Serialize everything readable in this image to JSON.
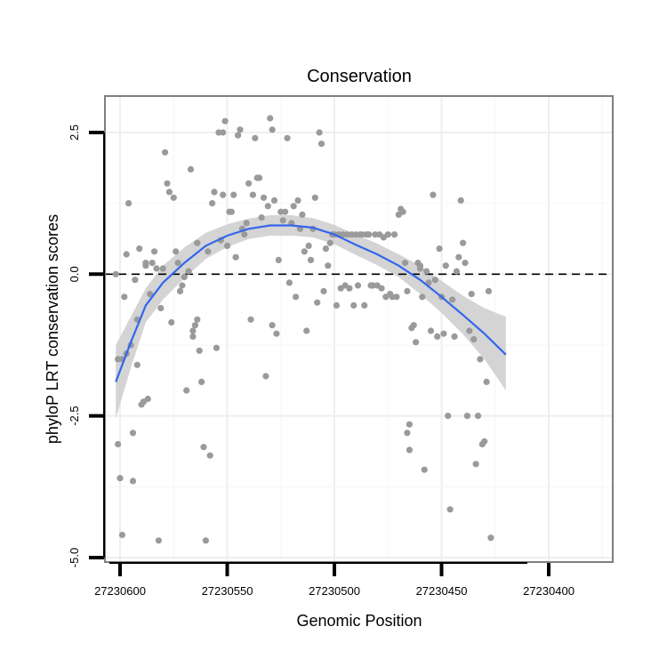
{
  "chart_data": {
    "type": "scatter",
    "title": "Conservation",
    "xlabel": "Genomic Position",
    "ylabel": "phyloP LRT conservation scores",
    "x_reversed": true,
    "xlim": [
      27230410,
      27230605
    ],
    "ylim": [
      -5.0,
      3.0
    ],
    "x_ticks": [
      27230600,
      27230550,
      27230500,
      27230450,
      27230400
    ],
    "x_tick_labels": [
      "27230600",
      "27230550",
      "27230500",
      "27230450",
      "27230400"
    ],
    "y_ticks": [
      -5.0,
      -2.5,
      0.0,
      2.5
    ],
    "y_tick_labels": [
      "-5.0",
      "-2.5",
      "0.0",
      "2.5"
    ],
    "reference_line": {
      "y": 0,
      "style": "dashed"
    },
    "grid": true,
    "colors": {
      "points": "#9a9a9a",
      "smooth": "#3366ee",
      "band": "#cfcfcf",
      "panel_border": "#7f7f7f"
    },
    "points": [
      [
        27230602,
        0.0
      ],
      [
        27230601,
        -1.5
      ],
      [
        27230601,
        -3.0
      ],
      [
        27230600,
        -3.6
      ],
      [
        27230599,
        -1.5
      ],
      [
        27230599,
        -4.6
      ],
      [
        27230598,
        -0.4
      ],
      [
        27230597,
        -1.4
      ],
      [
        27230597,
        0.35
      ],
      [
        27230596,
        1.25
      ],
      [
        27230595,
        -1.25
      ],
      [
        27230594,
        -3.65
      ],
      [
        27230594,
        -2.8
      ],
      [
        27230593,
        -0.1
      ],
      [
        27230592,
        -0.8
      ],
      [
        27230592,
        -1.6
      ],
      [
        27230591,
        0.45
      ],
      [
        27230590,
        -2.3
      ],
      [
        27230589,
        -2.25
      ],
      [
        27230588,
        0.15
      ],
      [
        27230588,
        0.2
      ],
      [
        27230587,
        -2.2
      ],
      [
        27230586,
        -0.35
      ],
      [
        27230585,
        0.2
      ],
      [
        27230584,
        0.4
      ],
      [
        27230583,
        0.1
      ],
      [
        27230582,
        -4.7
      ],
      [
        27230581,
        -0.6
      ],
      [
        27230580,
        0.1
      ],
      [
        27230579,
        2.15
      ],
      [
        27230578,
        1.6
      ],
      [
        27230577,
        1.45
      ],
      [
        27230576,
        -0.85
      ],
      [
        27230575,
        1.35
      ],
      [
        27230574,
        0.4
      ],
      [
        27230573,
        0.2
      ],
      [
        27230572,
        -0.3
      ],
      [
        27230571,
        -0.2
      ],
      [
        27230570,
        -0.05
      ],
      [
        27230569,
        -2.05
      ],
      [
        27230568,
        0.05
      ],
      [
        27230567,
        1.85
      ],
      [
        27230566,
        -1.1
      ],
      [
        27230566,
        -1.0
      ],
      [
        27230565,
        -0.9
      ],
      [
        27230564,
        -0.8
      ],
      [
        27230564,
        0.55
      ],
      [
        27230563,
        -1.35
      ],
      [
        27230562,
        -1.9
      ],
      [
        27230561,
        -3.05
      ],
      [
        27230560,
        -4.7
      ],
      [
        27230559,
        0.4
      ],
      [
        27230558,
        -3.2
      ],
      [
        27230557,
        1.25
      ],
      [
        27230556,
        1.45
      ],
      [
        27230555,
        -1.3
      ],
      [
        27230554,
        2.5
      ],
      [
        27230553,
        0.6
      ],
      [
        27230552,
        1.4
      ],
      [
        27230552,
        2.5
      ],
      [
        27230551,
        2.7
      ],
      [
        27230550,
        0.5
      ],
      [
        27230549,
        1.1
      ],
      [
        27230548,
        1.1
      ],
      [
        27230547,
        1.4
      ],
      [
        27230546,
        0.3
      ],
      [
        27230545,
        2.45
      ],
      [
        27230544,
        2.55
      ],
      [
        27230543,
        0.8
      ],
      [
        27230542,
        0.7
      ],
      [
        27230541,
        0.9
      ],
      [
        27230540,
        1.6
      ],
      [
        27230539,
        -0.8
      ],
      [
        27230538,
        1.4
      ],
      [
        27230537,
        2.4
      ],
      [
        27230536,
        1.7
      ],
      [
        27230535,
        1.7
      ],
      [
        27230534,
        1.0
      ],
      [
        27230533,
        1.35
      ],
      [
        27230532,
        -1.8
      ],
      [
        27230531,
        1.2
      ],
      [
        27230530,
        2.75
      ],
      [
        27230529,
        -0.9
      ],
      [
        27230529,
        2.55
      ],
      [
        27230528,
        1.3
      ],
      [
        27230527,
        -1.05
      ],
      [
        27230526,
        0.25
      ],
      [
        27230525,
        1.1
      ],
      [
        27230524,
        0.95
      ],
      [
        27230523,
        1.1
      ],
      [
        27230522,
        2.4
      ],
      [
        27230521,
        -0.15
      ],
      [
        27230520,
        0.9
      ],
      [
        27230519,
        1.2
      ],
      [
        27230518,
        -0.4
      ],
      [
        27230517,
        1.3
      ],
      [
        27230516,
        0.8
      ],
      [
        27230515,
        1.05
      ],
      [
        27230514,
        0.4
      ],
      [
        27230513,
        -1.0
      ],
      [
        27230512,
        0.5
      ],
      [
        27230511,
        0.25
      ],
      [
        27230510,
        0.8
      ],
      [
        27230509,
        1.35
      ],
      [
        27230508,
        -0.5
      ],
      [
        27230507,
        2.5
      ],
      [
        27230506,
        2.3
      ],
      [
        27230505,
        -0.3
      ],
      [
        27230504,
        0.45
      ],
      [
        27230503,
        0.15
      ],
      [
        27230502,
        0.55
      ],
      [
        27230501,
        0.7
      ],
      [
        27230500,
        0.7
      ],
      [
        27230499,
        -0.55
      ],
      [
        27230498,
        0.7
      ],
      [
        27230497,
        -0.25
      ],
      [
        27230496,
        0.7
      ],
      [
        27230495,
        -0.2
      ],
      [
        27230494,
        0.7
      ],
      [
        27230493,
        -0.25
      ],
      [
        27230492,
        0.7
      ],
      [
        27230491,
        -0.55
      ],
      [
        27230490,
        0.7
      ],
      [
        27230489,
        -0.2
      ],
      [
        27230488,
        0.7
      ],
      [
        27230487,
        0.7
      ],
      [
        27230486,
        -0.55
      ],
      [
        27230485,
        0.7
      ],
      [
        27230484,
        0.7
      ],
      [
        27230483,
        -0.2
      ],
      [
        27230482,
        -0.2
      ],
      [
        27230481,
        0.7
      ],
      [
        27230480,
        -0.2
      ],
      [
        27230479,
        0.7
      ],
      [
        27230478,
        -0.25
      ],
      [
        27230477,
        0.65
      ],
      [
        27230476,
        -0.4
      ],
      [
        27230475,
        0.7
      ],
      [
        27230474,
        -0.35
      ],
      [
        27230473,
        -0.4
      ],
      [
        27230472,
        0.7
      ],
      [
        27230471,
        -0.4
      ],
      [
        27230470,
        1.05
      ],
      [
        27230469,
        1.15
      ],
      [
        27230468,
        1.1
      ],
      [
        27230467,
        0.2
      ],
      [
        27230466,
        -0.3
      ],
      [
        27230466,
        -2.8
      ],
      [
        27230465,
        -2.65
      ],
      [
        27230465,
        -3.1
      ],
      [
        27230464,
        -0.95
      ],
      [
        27230463,
        -0.9
      ],
      [
        27230462,
        -1.2
      ],
      [
        27230461,
        0.2
      ],
      [
        27230460,
        0.15
      ],
      [
        27230460,
        0.1
      ],
      [
        27230459,
        -0.4
      ],
      [
        27230458,
        -3.45
      ],
      [
        27230457,
        0.05
      ],
      [
        27230456,
        -0.15
      ],
      [
        27230455,
        -1.0
      ],
      [
        27230454,
        1.4
      ],
      [
        27230453,
        -0.1
      ],
      [
        27230452,
        -1.1
      ],
      [
        27230451,
        0.45
      ],
      [
        27230450,
        -0.4
      ],
      [
        27230449,
        -1.05
      ],
      [
        27230448,
        0.15
      ],
      [
        27230447,
        -2.5
      ],
      [
        27230446,
        -4.15
      ],
      [
        27230445,
        -0.45
      ],
      [
        27230444,
        -1.1
      ],
      [
        27230443,
        0.05
      ],
      [
        27230442,
        0.3
      ],
      [
        27230441,
        1.3
      ],
      [
        27230440,
        0.55
      ],
      [
        27230439,
        0.2
      ],
      [
        27230438,
        -2.5
      ],
      [
        27230437,
        -1.0
      ],
      [
        27230436,
        -0.35
      ],
      [
        27230435,
        -1.15
      ],
      [
        27230434,
        -3.35
      ],
      [
        27230433,
        -2.5
      ],
      [
        27230432,
        -1.5
      ],
      [
        27230431,
        -3.0
      ],
      [
        27230430,
        -2.95
      ],
      [
        27230429,
        -1.9
      ],
      [
        27230428,
        -0.3
      ],
      [
        27230427,
        -4.65
      ]
    ],
    "smooth_line": [
      [
        27230602,
        -1.9
      ],
      [
        27230595,
        -1.2
      ],
      [
        27230588,
        -0.55
      ],
      [
        27230580,
        -0.15
      ],
      [
        27230570,
        0.2
      ],
      [
        27230560,
        0.5
      ],
      [
        27230550,
        0.68
      ],
      [
        27230540,
        0.8
      ],
      [
        27230530,
        0.86
      ],
      [
        27230520,
        0.86
      ],
      [
        27230510,
        0.82
      ],
      [
        27230500,
        0.7
      ],
      [
        27230490,
        0.52
      ],
      [
        27230480,
        0.35
      ],
      [
        27230470,
        0.15
      ],
      [
        27230460,
        -0.1
      ],
      [
        27230450,
        -0.4
      ],
      [
        27230440,
        -0.72
      ],
      [
        27230430,
        -1.05
      ],
      [
        27230420,
        -1.42
      ]
    ],
    "smooth_band_upper": [
      [
        27230602,
        -1.25
      ],
      [
        27230595,
        -0.75
      ],
      [
        27230588,
        -0.25
      ],
      [
        27230580,
        0.15
      ],
      [
        27230570,
        0.47
      ],
      [
        27230560,
        0.73
      ],
      [
        27230550,
        0.88
      ],
      [
        27230540,
        0.98
      ],
      [
        27230530,
        1.04
      ],
      [
        27230520,
        1.04
      ],
      [
        27230510,
        0.99
      ],
      [
        27230500,
        0.87
      ],
      [
        27230490,
        0.7
      ],
      [
        27230480,
        0.54
      ],
      [
        27230470,
        0.35
      ],
      [
        27230460,
        0.15
      ],
      [
        27230450,
        -0.12
      ],
      [
        27230440,
        -0.38
      ],
      [
        27230430,
        -0.6
      ],
      [
        27230420,
        -0.75
      ]
    ],
    "smooth_band_lower": [
      [
        27230602,
        -2.55
      ],
      [
        27230595,
        -1.65
      ],
      [
        27230588,
        -0.85
      ],
      [
        27230580,
        -0.45
      ],
      [
        27230570,
        -0.07
      ],
      [
        27230560,
        0.27
      ],
      [
        27230550,
        0.48
      ],
      [
        27230540,
        0.62
      ],
      [
        27230530,
        0.68
      ],
      [
        27230520,
        0.68
      ],
      [
        27230510,
        0.65
      ],
      [
        27230500,
        0.53
      ],
      [
        27230490,
        0.34
      ],
      [
        27230480,
        0.16
      ],
      [
        27230470,
        -0.05
      ],
      [
        27230460,
        -0.35
      ],
      [
        27230450,
        -0.68
      ],
      [
        27230440,
        -1.06
      ],
      [
        27230430,
        -1.5
      ],
      [
        27230420,
        -2.05
      ]
    ]
  }
}
